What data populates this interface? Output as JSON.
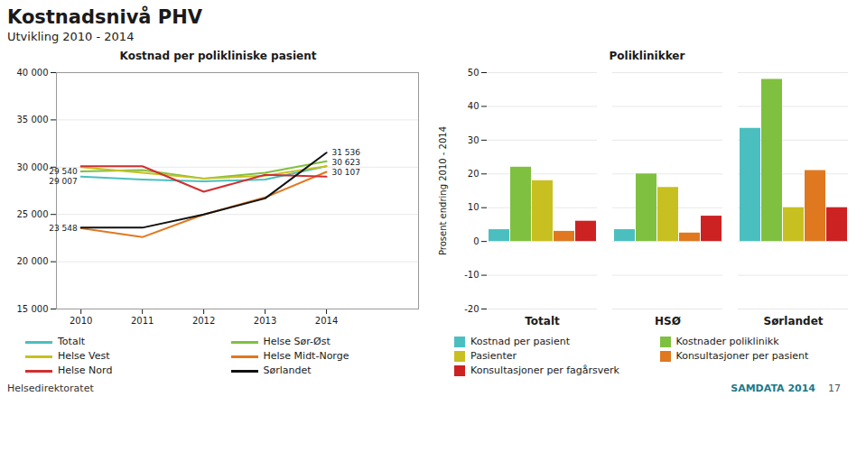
{
  "title": "Kostnadsnivå PHV",
  "subtitle": "Utvikling 2010 - 2014",
  "annotations": [
    {
      "text": "Helsedirektoratet"
    },
    {
      "text": "SAMDATA 2014",
      "color": "#1A7A8A"
    },
    {
      "text": "17"
    }
  ],
  "chart_data": [
    {
      "type": "line",
      "title": "Kostnad per polikliniske pasient",
      "x": [
        2010,
        2011,
        2012,
        2013,
        2014
      ],
      "xlim": [
        2009.6,
        2015.5
      ],
      "xticks": [
        2010,
        2011,
        2012,
        2013,
        2014
      ],
      "ylim": [
        15000,
        40000
      ],
      "yticks": [
        {
          "value": 15000,
          "label": "15 000"
        },
        {
          "value": 20000,
          "label": "20 000"
        },
        {
          "value": 25000,
          "label": "25 000"
        },
        {
          "value": 30000,
          "label": "30 000"
        },
        {
          "value": 35000,
          "label": "35 000"
        },
        {
          "value": 40000,
          "label": "40 000"
        }
      ],
      "grid": true,
      "legend": "bottom",
      "series": [
        {
          "name": "Totalt",
          "color": "#4BBFBF",
          "values": [
            29007,
            28700,
            28500,
            28700,
            30107
          ]
        },
        {
          "name": "Helse Sør-Øst",
          "color": "#80C040",
          "values": [
            29540,
            29700,
            28800,
            29400,
            30623
          ]
        },
        {
          "name": "Helse Vest",
          "color": "#C8C020",
          "values": [
            30000,
            29400,
            28800,
            29100,
            30100
          ]
        },
        {
          "name": "Helse Midt-Norge",
          "color": "#E07820",
          "values": [
            23548,
            22600,
            25000,
            26800,
            29500
          ]
        },
        {
          "name": "Helse Nord",
          "color": "#D03030",
          "values": [
            30100,
            30100,
            27400,
            29200,
            29000
          ]
        },
        {
          "name": "Sørlandet",
          "color": "#111111",
          "values": [
            23600,
            23600,
            25000,
            26700,
            31536
          ]
        }
      ],
      "annotations": [
        {
          "x": 2010,
          "y": 29540,
          "text": "29 540"
        },
        {
          "x": 2010,
          "y": 29007,
          "text": "29 007"
        },
        {
          "x": 2010,
          "y": 23548,
          "text": "23 548"
        },
        {
          "x": 2014,
          "y": 31536,
          "text": "31 536"
        },
        {
          "x": 2014,
          "y": 30623,
          "text": "30 623"
        },
        {
          "x": 2014,
          "y": 30107,
          "text": "30 107"
        }
      ]
    },
    {
      "type": "bar",
      "title": "Poliklinikker",
      "ylabel": "Prosent endring 2010 - 2014",
      "categories": [
        "Totalt",
        "HSØ",
        "Sørlandet"
      ],
      "ylim": [
        -20,
        50
      ],
      "yticks": [
        -20,
        -10,
        0,
        10,
        20,
        30,
        40,
        50
      ],
      "grid": true,
      "legend": "bottom",
      "series": [
        {
          "name": "Kostnad per pasient",
          "color": "#4BBFBF",
          "values": [
            3.5,
            3.5,
            33.5
          ]
        },
        {
          "name": "Kostnader poliklinikk",
          "color": "#80C040",
          "values": [
            22.0,
            20.0,
            48.0
          ]
        },
        {
          "name": "Pasienter",
          "color": "#C8C020",
          "values": [
            18.0,
            16.0,
            10.0
          ]
        },
        {
          "name": "Konsultasjoner per pasient",
          "color": "#E07820",
          "values": [
            3.0,
            2.5,
            21.0
          ]
        },
        {
          "name": "Konsultasjoner per fagårsverk",
          "color": "#CC2222",
          "values": [
            6.0,
            7.5,
            10.0
          ]
        }
      ]
    }
  ]
}
